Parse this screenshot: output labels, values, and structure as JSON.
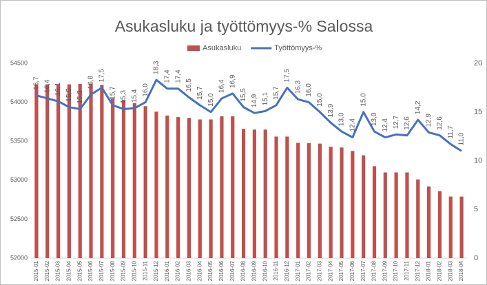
{
  "chart_data": {
    "type": "bar",
    "title": "Asukasluku ja työttömyys-% Salossa",
    "categories": [
      "2015-01",
      "2015-02",
      "2015-03",
      "2015-04",
      "2015-05",
      "2015-06",
      "2015-07",
      "2015-08",
      "2015-09",
      "2015-10",
      "2015-11",
      "2015-12",
      "2016-01",
      "2016-02",
      "2016-03",
      "2016-04",
      "2016-05",
      "2016-06",
      "2016-07",
      "2016-08",
      "2016-09",
      "2016-10",
      "2016-11",
      "2016-12",
      "2017-01",
      "2017-02",
      "2017-03",
      "2017-04",
      "2017-05",
      "2017-06",
      "2017-07",
      "2017-08",
      "2017-09",
      "2017-10",
      "2017-11",
      "2017-12",
      "2018-01",
      "2018-02",
      "2018-03",
      "2018-04"
    ],
    "series": [
      {
        "name": "Asukasluku",
        "type": "bar",
        "color": "#c0504d",
        "values": [
          54230,
          54230,
          54225,
          54230,
          54235,
          54240,
          54225,
          54050,
          54030,
          53990,
          53950,
          53880,
          53830,
          53810,
          53800,
          53780,
          53780,
          53820,
          53820,
          53660,
          53650,
          53650,
          53560,
          53560,
          53480,
          53475,
          53470,
          53430,
          53420,
          53375,
          53320,
          53180,
          53100,
          53100,
          53100,
          53010,
          52920,
          52860,
          52790,
          52790
        ]
      },
      {
        "name": "Työttömyys-%",
        "type": "line",
        "color": "#4472c4",
        "axis": "y2",
        "values": [
          16.7,
          16.4,
          16.1,
          15.5,
          15.3,
          16.8,
          17.5,
          15.7,
          15.3,
          15.4,
          16.0,
          18.3,
          17.4,
          17.4,
          16.5,
          15.7,
          15.0,
          16.4,
          16.9,
          15.5,
          14.9,
          15.1,
          15.7,
          17.5,
          16.3,
          16.0,
          15.0,
          13.9,
          13.0,
          12.4,
          15.0,
          13.0,
          12.4,
          12.7,
          12.6,
          14.2,
          12.9,
          12.6,
          11.7,
          11.0
        ],
        "value_labels": [
          "16,7",
          "16,4",
          "16,1",
          "15,5",
          "15,3",
          "16,8",
          "17,5",
          "15,7",
          "15,3",
          "15,4",
          "16,0",
          "18,3",
          "17,4",
          "17,4",
          "16,5",
          "15,7",
          "15,0",
          "16,4",
          "16,9",
          "15,5",
          "14,9",
          "15,1",
          "15,7",
          "17,5",
          "16,3",
          "16,0",
          "15,0",
          "13,9",
          "13,0",
          "12,4",
          "15,0",
          "13,0",
          "12,4",
          "12,7",
          "12,6",
          "14,2",
          "12,9",
          "12,6",
          "11,7",
          "11,0"
        ]
      }
    ],
    "ylim": [
      52000,
      54500
    ],
    "yticks": [
      52000,
      52500,
      53000,
      53500,
      54000,
      54500
    ],
    "y2lim": [
      0,
      20
    ],
    "y2ticks": [
      0,
      5,
      10,
      15,
      20
    ],
    "legend": "top",
    "grid": false
  }
}
